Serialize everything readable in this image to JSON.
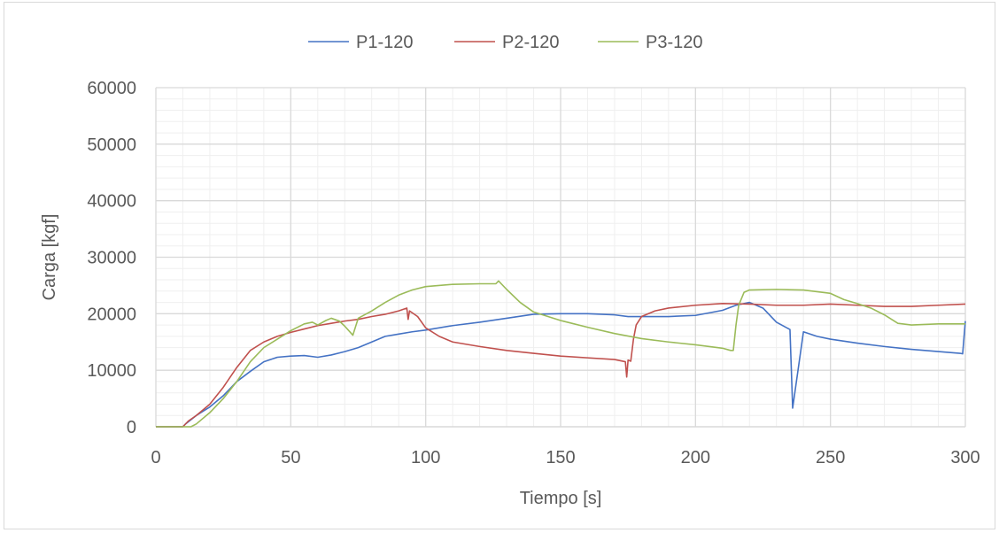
{
  "chart_data": {
    "type": "line",
    "title": "",
    "xlabel": "Tiempo [s]",
    "ylabel": "Carga [kgf]",
    "xlim": [
      0,
      300
    ],
    "ylim": [
      0,
      60000
    ],
    "x_ticks": [
      0,
      50,
      100,
      150,
      200,
      250,
      300
    ],
    "y_ticks": [
      0,
      10000,
      20000,
      30000,
      40000,
      50000,
      60000
    ],
    "x_tick_labels": [
      "0",
      "50",
      "100",
      "150",
      "200",
      "250",
      "300"
    ],
    "y_tick_labels": [
      "0",
      "10000",
      "20000",
      "30000",
      "40000",
      "50000",
      "60000"
    ],
    "grid": "major and minor",
    "legend_position": "top",
    "series": [
      {
        "name": "P1-120",
        "color": "#4472c4",
        "points": [
          [
            0,
            0
          ],
          [
            10,
            0
          ],
          [
            11,
            500
          ],
          [
            15,
            2000
          ],
          [
            20,
            3500
          ],
          [
            25,
            5500
          ],
          [
            30,
            8000
          ],
          [
            35,
            9800
          ],
          [
            40,
            11500
          ],
          [
            45,
            12300
          ],
          [
            50,
            12500
          ],
          [
            55,
            12600
          ],
          [
            60,
            12300
          ],
          [
            65,
            12700
          ],
          [
            70,
            13300
          ],
          [
            75,
            14000
          ],
          [
            80,
            15000
          ],
          [
            85,
            16000
          ],
          [
            90,
            16400
          ],
          [
            95,
            16800
          ],
          [
            100,
            17100
          ],
          [
            110,
            17900
          ],
          [
            120,
            18500
          ],
          [
            130,
            19200
          ],
          [
            140,
            19900
          ],
          [
            150,
            20000
          ],
          [
            160,
            20000
          ],
          [
            170,
            19800
          ],
          [
            175,
            19500
          ],
          [
            190,
            19500
          ],
          [
            200,
            19700
          ],
          [
            210,
            20600
          ],
          [
            215,
            21500
          ],
          [
            220,
            22000
          ],
          [
            225,
            21000
          ],
          [
            230,
            18500
          ],
          [
            235,
            17200
          ],
          [
            236,
            3300
          ],
          [
            240,
            16800
          ],
          [
            245,
            16000
          ],
          [
            250,
            15500
          ],
          [
            260,
            14800
          ],
          [
            270,
            14200
          ],
          [
            280,
            13700
          ],
          [
            290,
            13300
          ],
          [
            298,
            13000
          ],
          [
            299,
            12900
          ],
          [
            300,
            18700
          ]
        ]
      },
      {
        "name": "P2-120",
        "color": "#c0504d",
        "points": [
          [
            0,
            0
          ],
          [
            10,
            0
          ],
          [
            12,
            1000
          ],
          [
            15,
            2000
          ],
          [
            20,
            4000
          ],
          [
            25,
            7000
          ],
          [
            30,
            10500
          ],
          [
            35,
            13500
          ],
          [
            40,
            15000
          ],
          [
            45,
            16000
          ],
          [
            50,
            16700
          ],
          [
            55,
            17300
          ],
          [
            60,
            17900
          ],
          [
            65,
            18300
          ],
          [
            70,
            18700
          ],
          [
            75,
            19000
          ],
          [
            80,
            19500
          ],
          [
            85,
            19900
          ],
          [
            90,
            20500
          ],
          [
            93,
            21000
          ],
          [
            93.5,
            19000
          ],
          [
            94,
            20500
          ],
          [
            97,
            19500
          ],
          [
            100,
            17500
          ],
          [
            105,
            16000
          ],
          [
            110,
            15000
          ],
          [
            120,
            14200
          ],
          [
            130,
            13500
          ],
          [
            140,
            13000
          ],
          [
            150,
            12500
          ],
          [
            160,
            12200
          ],
          [
            170,
            11900
          ],
          [
            174,
            11500
          ],
          [
            174.5,
            8800
          ],
          [
            175,
            11800
          ],
          [
            176,
            11600
          ],
          [
            177,
            15500
          ],
          [
            178,
            18000
          ],
          [
            180,
            19500
          ],
          [
            185,
            20500
          ],
          [
            190,
            21000
          ],
          [
            200,
            21500
          ],
          [
            210,
            21800
          ],
          [
            220,
            21700
          ],
          [
            230,
            21500
          ],
          [
            240,
            21500
          ],
          [
            250,
            21700
          ],
          [
            260,
            21500
          ],
          [
            270,
            21300
          ],
          [
            280,
            21300
          ],
          [
            290,
            21500
          ],
          [
            300,
            21700
          ]
        ]
      },
      {
        "name": "P3-120",
        "color": "#9bbb59",
        "points": [
          [
            0,
            0
          ],
          [
            13,
            0
          ],
          [
            15,
            500
          ],
          [
            20,
            2500
          ],
          [
            25,
            5000
          ],
          [
            30,
            8000
          ],
          [
            35,
            11500
          ],
          [
            40,
            14000
          ],
          [
            45,
            15500
          ],
          [
            50,
            17000
          ],
          [
            55,
            18200
          ],
          [
            58,
            18500
          ],
          [
            60,
            18000
          ],
          [
            63,
            18800
          ],
          [
            65,
            19200
          ],
          [
            68,
            18700
          ],
          [
            70,
            17800
          ],
          [
            73,
            16200
          ],
          [
            75,
            19200
          ],
          [
            80,
            20500
          ],
          [
            85,
            22000
          ],
          [
            90,
            23300
          ],
          [
            95,
            24200
          ],
          [
            100,
            24800
          ],
          [
            110,
            25200
          ],
          [
            120,
            25300
          ],
          [
            126,
            25300
          ],
          [
            127,
            25800
          ],
          [
            130,
            24300
          ],
          [
            135,
            22000
          ],
          [
            140,
            20300
          ],
          [
            150,
            18800
          ],
          [
            160,
            17600
          ],
          [
            170,
            16500
          ],
          [
            180,
            15600
          ],
          [
            190,
            15000
          ],
          [
            200,
            14500
          ],
          [
            210,
            13900
          ],
          [
            213,
            13500
          ],
          [
            214,
            13500
          ],
          [
            215,
            18000
          ],
          [
            216,
            21500
          ],
          [
            218,
            23800
          ],
          [
            220,
            24200
          ],
          [
            230,
            24300
          ],
          [
            240,
            24200
          ],
          [
            250,
            23600
          ],
          [
            255,
            22500
          ],
          [
            260,
            21800
          ],
          [
            265,
            21000
          ],
          [
            270,
            19800
          ],
          [
            275,
            18300
          ],
          [
            280,
            18000
          ],
          [
            290,
            18200
          ],
          [
            300,
            18200
          ]
        ]
      }
    ]
  }
}
